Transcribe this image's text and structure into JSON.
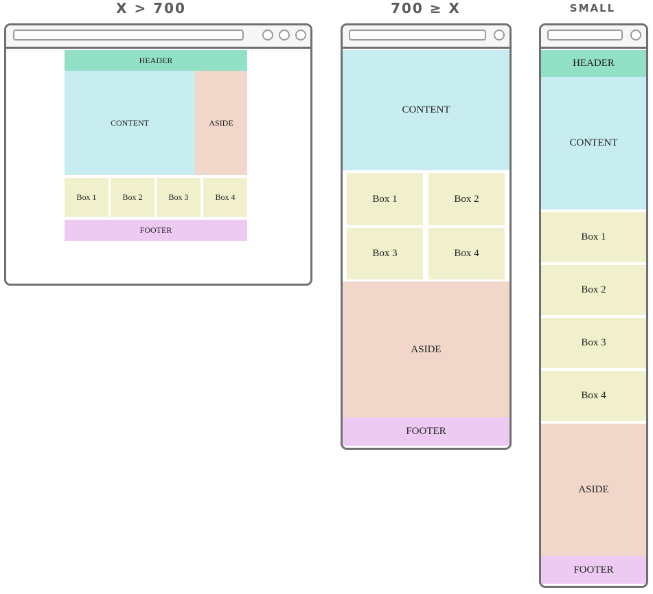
{
  "titles": {
    "large": "X > 700",
    "medium": "700 ≥ X",
    "small": "SMALL"
  },
  "labels": {
    "header": "HEADER",
    "content": "CONTENT",
    "aside": "ASIDE",
    "box1": "Box 1",
    "box2": "Box 2",
    "box3": "Box 3",
    "box4": "Box 4",
    "footer": "FOOTER"
  },
  "colors": {
    "header": "#92e0c6",
    "content": "#c8edf0",
    "aside": "#f0d7ca",
    "box": "#f1f0cc",
    "footer": "#edcaf2",
    "frame": "#707070"
  }
}
